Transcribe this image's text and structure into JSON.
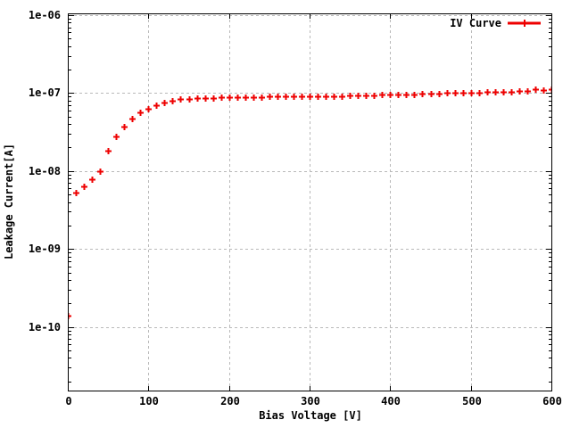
{
  "chart_data": {
    "type": "scatter",
    "title": "",
    "xlabel": "Bias Voltage [V]",
    "ylabel": "Leakage Current[A]",
    "legend_position": "top-right-inside",
    "grid": true,
    "x_scale": "linear",
    "y_scale": "log",
    "xlim": [
      0,
      600
    ],
    "ylim": [
      1.5e-11,
      1e-06
    ],
    "x_tick_values": [
      0,
      100,
      200,
      300,
      400,
      500,
      600
    ],
    "x_tick_labels": [
      "0",
      "100",
      "200",
      "300",
      "400",
      "500",
      "600"
    ],
    "y_tick_values": [
      1e-10,
      1e-09,
      1e-08,
      1e-07,
      1e-06
    ],
    "y_tick_labels": [
      "1e-10",
      "1e-09",
      "1e-08",
      "1e-07",
      "1e-06"
    ],
    "marker": "plus",
    "series": [
      {
        "name": "IV Curve",
        "color": "#ee0000",
        "x": [
          0,
          10,
          20,
          30,
          40,
          50,
          60,
          70,
          80,
          90,
          100,
          110,
          120,
          130,
          140,
          150,
          160,
          170,
          180,
          190,
          200,
          210,
          220,
          230,
          240,
          250,
          260,
          270,
          280,
          290,
          300,
          310,
          320,
          330,
          340,
          350,
          360,
          370,
          380,
          390,
          400,
          410,
          420,
          430,
          440,
          450,
          460,
          470,
          480,
          490,
          500,
          510,
          520,
          530,
          540,
          550,
          560,
          570,
          580,
          590,
          600
        ],
        "y": [
          1.4e-10,
          5.3e-09,
          6.4e-09,
          7.9e-09,
          1e-08,
          1.8e-08,
          2.8e-08,
          3.7e-08,
          4.7e-08,
          5.7e-08,
          6.3e-08,
          7e-08,
          7.6e-08,
          8e-08,
          8.4e-08,
          8.5e-08,
          8.6e-08,
          8.7e-08,
          8.7e-08,
          8.8e-08,
          8.8e-08,
          8.8e-08,
          8.9e-08,
          8.9e-08,
          8.9e-08,
          9e-08,
          9e-08,
          9e-08,
          9e-08,
          9.1e-08,
          9.1e-08,
          9.1e-08,
          9.2e-08,
          9.2e-08,
          9.2e-08,
          9.3e-08,
          9.3e-08,
          9.4e-08,
          9.4e-08,
          9.5e-08,
          9.5e-08,
          9.6e-08,
          9.6e-08,
          9.7e-08,
          9.8e-08,
          9.9e-08,
          9.9e-08,
          1e-07,
          1e-07,
          1.01e-07,
          1.02e-07,
          1.02e-07,
          1.03e-07,
          1.04e-07,
          1.05e-07,
          1.05e-07,
          1.06e-07,
          1.07e-07,
          1.12e-07,
          1.1e-07,
          1.11e-07
        ]
      }
    ],
    "colors": {
      "series": "#ee0000",
      "grid": "#b9b9b9",
      "border": "#000000",
      "text": "#000000",
      "background": "#ffffff"
    }
  }
}
